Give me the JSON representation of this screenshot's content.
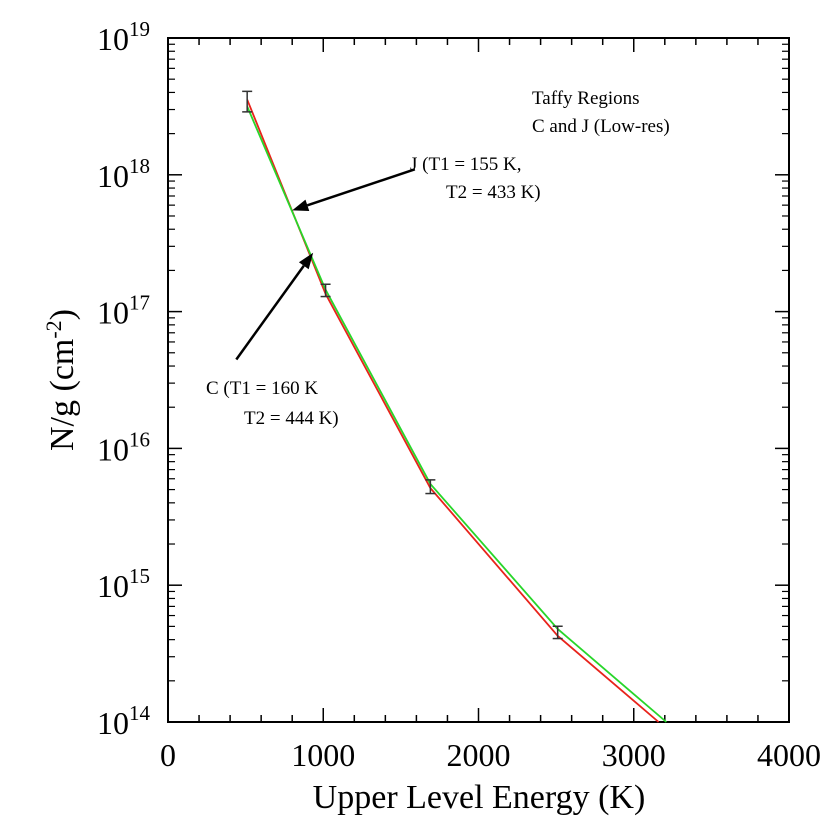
{
  "chart_data": {
    "type": "line",
    "title": "",
    "xlabel": "Upper Level Energy (K)",
    "ylabel_base": "N/g (cm",
    "ylabel_sup": "-2",
    "ylabel_end": ")",
    "xlim": [
      0,
      4000
    ],
    "ylim_log10": [
      14,
      19
    ],
    "yscale": "log",
    "x_ticks": [
      0,
      1000,
      2000,
      3000,
      4000
    ],
    "x_tick_labels": [
      "0",
      "1000",
      "2000",
      "3000",
      "4000"
    ],
    "y_ticks_log10": [
      14,
      15,
      16,
      17,
      18,
      19
    ],
    "y_tick_base": "10",
    "y_tick_exponents": [
      "14",
      "15",
      "16",
      "17",
      "18",
      "19"
    ],
    "series": [
      {
        "name": "Region C",
        "color": "#e8231b",
        "x": [
          510,
          1015,
          1690,
          2510,
          3160
        ],
        "log10_y": [
          18.55,
          17.13,
          15.71,
          14.63,
          14.0
        ]
      },
      {
        "name": "Region J",
        "color": "#28d62a",
        "x": [
          510,
          1015,
          1690,
          2510,
          3210
        ],
        "log10_y": [
          18.5,
          17.16,
          15.74,
          14.68,
          14.0
        ]
      }
    ],
    "error_bars": [
      {
        "x": 510,
        "log10_low": 18.46,
        "log10_high": 18.61
      },
      {
        "x": 1015,
        "log10_low": 17.11,
        "log10_high": 17.2
      },
      {
        "x": 1690,
        "log10_low": 15.67,
        "log10_high": 15.77
      },
      {
        "x": 2510,
        "log10_low": 14.61,
        "log10_high": 14.7
      }
    ],
    "legend": {
      "line1": "Taffy Regions",
      "line2": "C and J (Low-res)"
    },
    "annotations": [
      {
        "id": "J",
        "line1": "J (T1 = 155 K,",
        "line2": "T2 = 433 K)",
        "arrow_tail": {
          "x": 1590,
          "log10_y": 18.04
        },
        "arrow_head": {
          "x": 800,
          "log10_y": 17.74
        }
      },
      {
        "id": "C",
        "line1": "C (T1 = 160 K",
        "line2": "T2 = 444 K)",
        "arrow_tail": {
          "x": 440,
          "log10_y": 16.65
        },
        "arrow_head": {
          "x": 935,
          "log10_y": 17.43
        }
      }
    ]
  }
}
